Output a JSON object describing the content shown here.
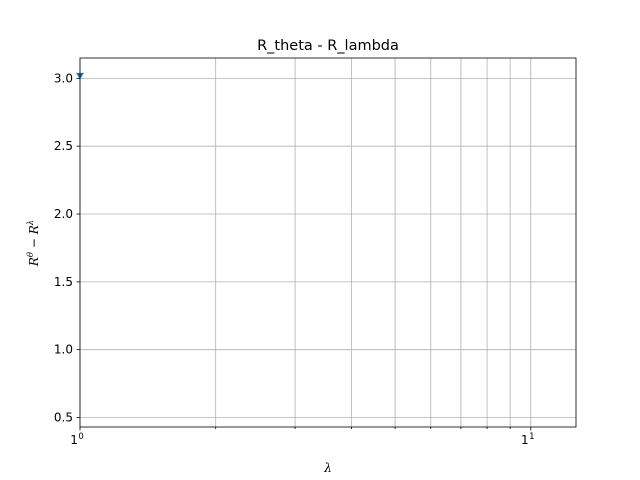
{
  "chart_data": {
    "type": "scatter",
    "title": "R_theta - R_lambda",
    "xlabel": "λ",
    "ylabel_base": "R",
    "ylabel_sup1": "θ",
    "ylabel_minus": " − ",
    "ylabel_sup2": "λ",
    "xscale": "log",
    "xlim": [
      1.0,
      12.6
    ],
    "ylim": [
      0.43,
      3.15
    ],
    "x_major_ticks": [
      1,
      10
    ],
    "x_major_tick_labels": [
      "1",
      "1"
    ],
    "x_major_tick_exponents": [
      "0",
      "1"
    ],
    "x_minor_ticks": [
      2,
      3,
      4,
      5,
      6,
      7,
      8,
      9
    ],
    "y_ticks": [
      0.5,
      1.0,
      1.5,
      2.0,
      2.5,
      3.0
    ],
    "y_tick_labels": [
      "0.5",
      "1.0",
      "1.5",
      "2.0",
      "2.5",
      "3.0"
    ],
    "grid": true,
    "marker_color": "#1f77b4",
    "series": [
      {
        "x": [
          1.0
        ],
        "y": [
          3.02
        ]
      }
    ]
  }
}
